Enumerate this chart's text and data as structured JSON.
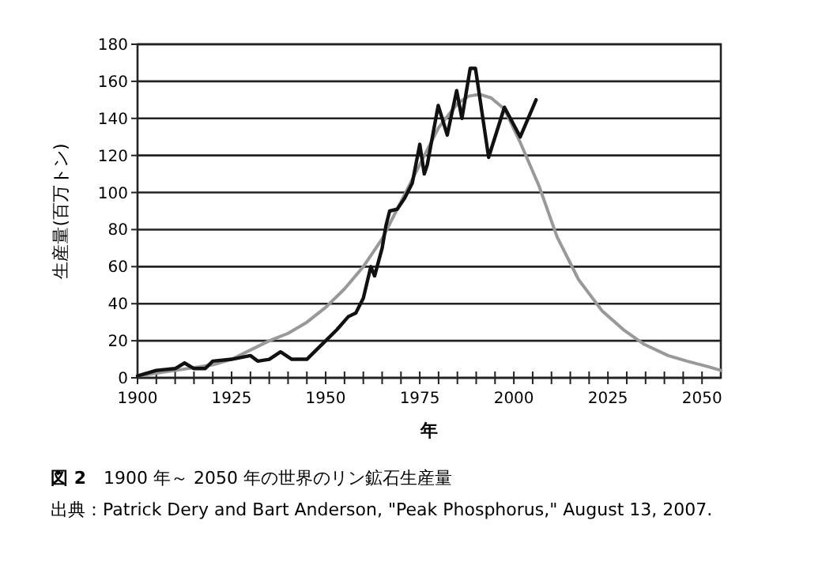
{
  "chart_data": {
    "type": "line",
    "title": "**図 2**　1900 年～ 2050 年の世界のリン鉱石生産量",
    "xlabel": "年",
    "ylabel": "生産量(百万トン)",
    "annotations": [
      "出典：Patrick Dery and Bart Anderson, \"Peak Phosphorus,\" August 13, 2007."
    ],
    "xlim": [
      1900,
      2055
    ],
    "ylim": [
      0,
      180
    ],
    "xticks": [
      1900,
      {
        "value": 1905,
        "label": null
      },
      {
        "value": 1910,
        "label": null
      },
      {
        "value": 1915,
        "label": null
      },
      {
        "value": 1920,
        "label": null
      },
      1925,
      {
        "value": 1930,
        "label": null
      },
      {
        "value": 1935,
        "label": null
      },
      {
        "value": 1940,
        "label": null
      },
      {
        "value": 1945,
        "label": null
      },
      1950,
      {
        "value": 1955,
        "label": null
      },
      {
        "value": 1960,
        "label": null
      },
      {
        "value": 1965,
        "label": null
      },
      {
        "value": 1970,
        "label": null
      },
      1975,
      {
        "value": 1980,
        "label": null
      },
      {
        "value": 1985,
        "label": null
      },
      {
        "value": 1990,
        "label": null
      },
      {
        "value": 1995,
        "label": null
      },
      2000,
      {
        "value": 2005,
        "label": null
      },
      {
        "value": 2010,
        "label": null
      },
      {
        "value": 2015,
        "label": null
      },
      {
        "value": 2020,
        "label": null
      },
      2025,
      {
        "value": 2030,
        "label": null
      },
      {
        "value": 2035,
        "label": null
      },
      {
        "value": 2040,
        "label": null
      },
      {
        "value": 2045,
        "label": null
      },
      2050
    ],
    "yticks": [
      0,
      20,
      40,
      60,
      80,
      100,
      120,
      140,
      160,
      180
    ],
    "grid": "y",
    "marker": "none",
    "line_style": "solid",
    "series": [
      {
        "color": "#999999",
        "x": [
          1900,
          1910,
          1920,
          1925,
          1930,
          1935,
          1940,
          1945,
          1950,
          1955,
          1960,
          1965,
          1970,
          1975,
          1980,
          1985,
          1988,
          1991,
          1994,
          1997.5,
          2001.7,
          2006.6,
          2011.5,
          2017.2,
          2023.5,
          2029.1,
          2034.7,
          2041,
          2046,
          2051.6,
          2055
        ],
        "values": [
          1,
          4,
          7,
          10,
          15,
          20,
          24,
          30,
          38,
          48,
          60,
          75,
          95,
          115,
          135,
          148,
          152,
          153,
          151,
          145,
          127,
          104,
          76,
          53,
          36,
          26,
          18,
          12,
          9,
          6,
          4
        ]
      },
      {
        "color": "#111111",
        "x": [
          1900,
          1905,
          1910,
          1912.5,
          1915,
          1918,
          1920,
          1925,
          1930,
          1932,
          1935,
          1938,
          1941,
          1945,
          1947,
          1950,
          1953,
          1956,
          1958,
          1960,
          1962,
          1963,
          1965,
          1966,
          1967,
          1969,
          1971,
          1973,
          1975,
          1976.2,
          1977,
          1979.9,
          1982.3,
          1984.8,
          1986.2,
          1988.4,
          1989.8,
          1993.3,
          1997.5,
          2001.7,
          2005.9
        ],
        "values": [
          1,
          4,
          5,
          8,
          5,
          5,
          9,
          10,
          12,
          9,
          10,
          14,
          10,
          10,
          14,
          20,
          26,
          33,
          35,
          43,
          60,
          55,
          70,
          82,
          90,
          91,
          97,
          105,
          126,
          110,
          115,
          147,
          131,
          155,
          140,
          167,
          167,
          119,
          146,
          130,
          150
        ]
      }
    ]
  }
}
